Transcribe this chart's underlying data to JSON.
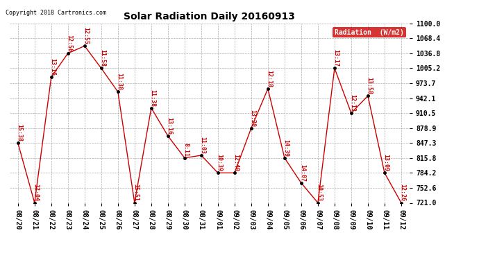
{
  "title": "Solar Radiation Daily 20160913",
  "copyright": "Copyright 2018 Cartronics.com",
  "legend_label": "Radiation  (W/m2)",
  "x_labels": [
    "08/20",
    "08/21",
    "08/22",
    "08/23",
    "08/24",
    "08/25",
    "08/26",
    "08/27",
    "08/28",
    "08/29",
    "08/30",
    "08/31",
    "09/01",
    "09/02",
    "09/03",
    "09/04",
    "09/05",
    "09/06",
    "09/07",
    "09/08",
    "09/09",
    "09/10",
    "09/11",
    "09/12"
  ],
  "y_values": [
    847.3,
    721.0,
    986.7,
    1036.8,
    1052.4,
    1005.2,
    955.5,
    721.0,
    921.3,
    862.4,
    815.8,
    821.3,
    784.2,
    784.2,
    878.9,
    962.0,
    815.8,
    762.8,
    721.0,
    1005.2,
    910.5,
    947.0,
    784.2,
    721.0
  ],
  "point_labels": [
    "15:38",
    "12:04",
    "13:16",
    "12:56",
    "12:55",
    "11:58",
    "11:38",
    "15:51",
    "11:38",
    "13:16",
    "8:11",
    "11:03",
    "10:39",
    "12:40",
    "13:20",
    "12:18",
    "14:39",
    "14:07",
    "10:53",
    "13:17",
    "12:13",
    "13:58",
    "13:09",
    "12:26"
  ],
  "ylim_min": 721.0,
  "ylim_max": 1100.0,
  "ytick_values": [
    721.0,
    752.6,
    784.2,
    815.8,
    847.3,
    878.9,
    910.5,
    942.1,
    973.7,
    1005.2,
    1036.8,
    1068.4,
    1100.0
  ],
  "line_color": "#cc0000",
  "marker_color": "#000000",
  "bg_color": "#ffffff",
  "grid_color": "#999999",
  "title_color": "#000000",
  "legend_bg": "#cc0000",
  "legend_text_color": "#ffffff",
  "figwidth": 6.9,
  "figheight": 3.75,
  "dpi": 100
}
